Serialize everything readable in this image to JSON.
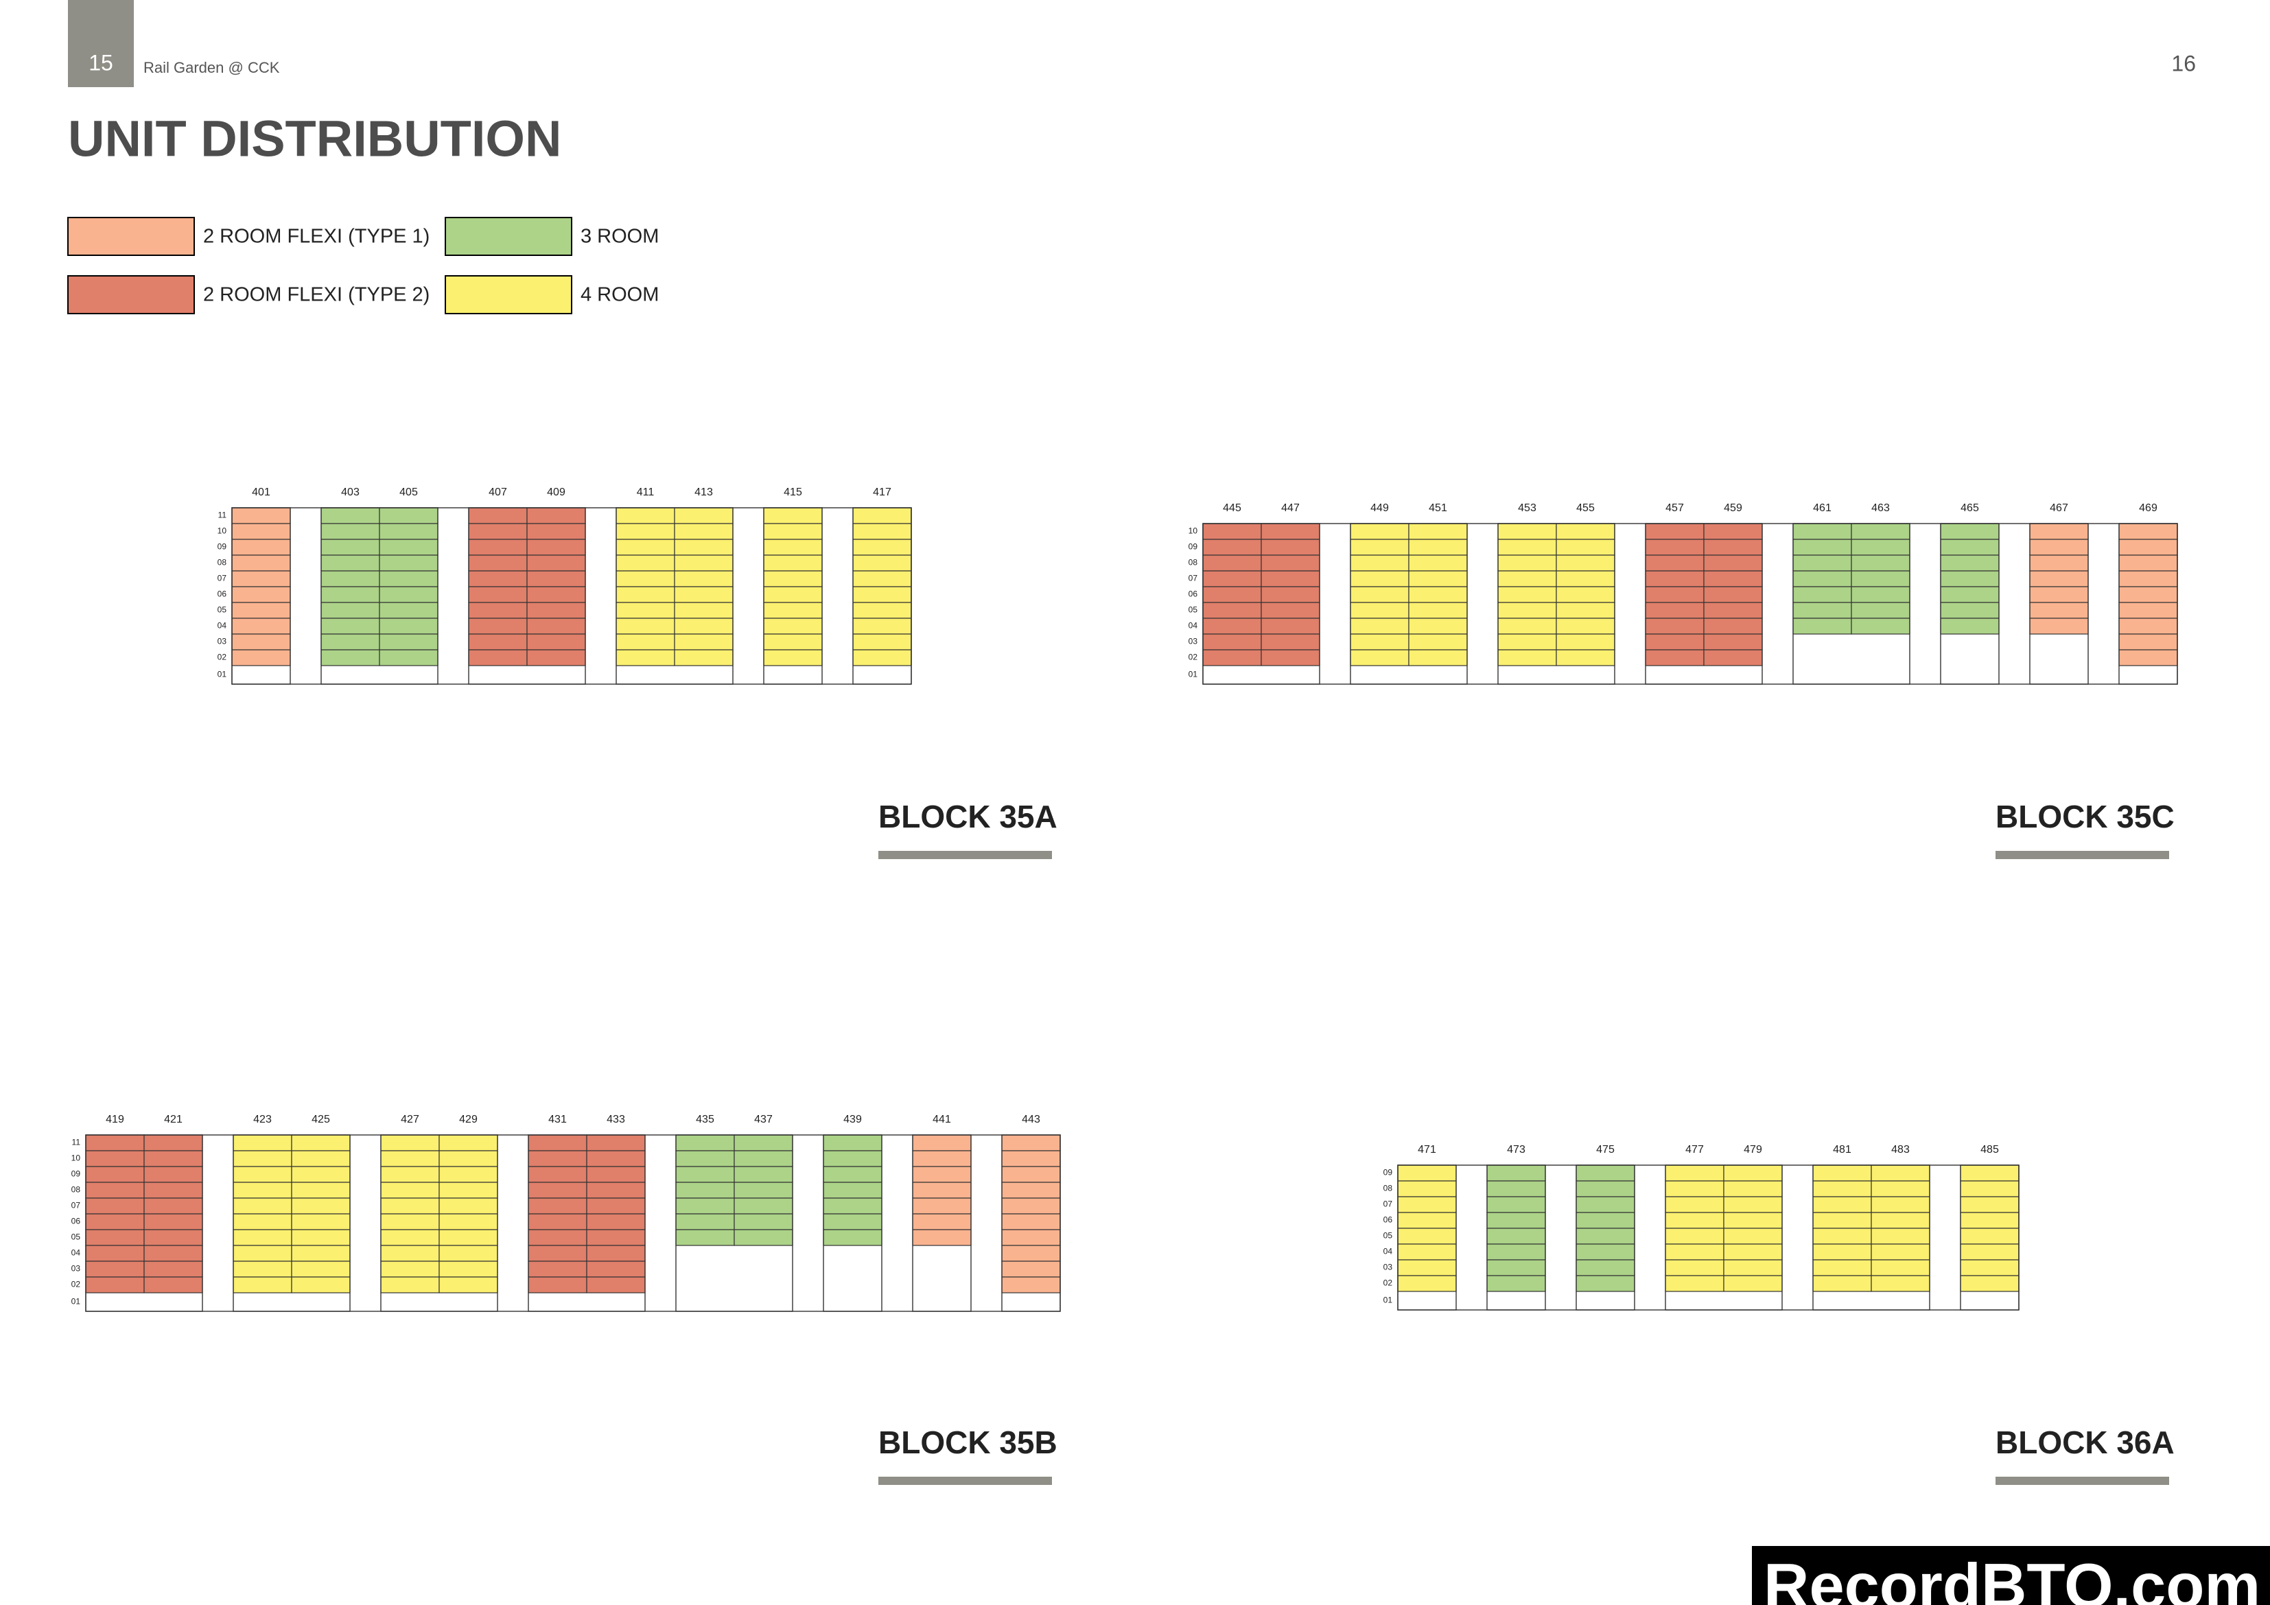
{
  "header": {
    "page_left": "15",
    "project": "Rail Garden @ CCK",
    "page_right": "16"
  },
  "title": "UNIT DISTRIBUTION",
  "legend": [
    {
      "label": "2 ROOM FLEXI (TYPE 1)",
      "color": "#f9b38f"
    },
    {
      "label": "2 ROOM FLEXI (TYPE 2)",
      "color": "#e07f6a"
    },
    {
      "label": "3 ROOM",
      "color": "#acd388"
    },
    {
      "label": "4 ROOM",
      "color": "#fbf06f"
    }
  ],
  "blocks": [
    {
      "name": "BLOCK 35A",
      "floors": [
        "11",
        "10",
        "09",
        "08",
        "07",
        "06",
        "05",
        "04",
        "03",
        "02",
        "01"
      ],
      "groups": [
        [
          {
            "label": "401",
            "type": "2 ROOM FLEXI (TYPE 1)",
            "to": "02"
          }
        ],
        [
          {
            "label": "403",
            "type": "3 ROOM",
            "to": "02"
          },
          {
            "label": "405",
            "type": "3 ROOM",
            "to": "02"
          }
        ],
        [
          {
            "label": "407",
            "type": "2 ROOM FLEXI (TYPE 2)",
            "to": "02"
          },
          {
            "label": "409",
            "type": "2 ROOM FLEXI (TYPE 2)",
            "to": "02"
          }
        ],
        [
          {
            "label": "411",
            "type": "4 ROOM",
            "to": "02"
          },
          {
            "label": "413",
            "type": "4 ROOM",
            "to": "02"
          }
        ],
        [
          {
            "label": "415",
            "type": "4 ROOM",
            "to": "02"
          }
        ],
        [
          {
            "label": "417",
            "type": "4 ROOM",
            "to": "02"
          }
        ]
      ]
    },
    {
      "name": "BLOCK 35C",
      "floors": [
        "10",
        "09",
        "08",
        "07",
        "06",
        "05",
        "04",
        "03",
        "02",
        "01"
      ],
      "groups": [
        [
          {
            "label": "445",
            "type": "2 ROOM FLEXI (TYPE 2)",
            "to": "02"
          },
          {
            "label": "447",
            "type": "2 ROOM FLEXI (TYPE 2)",
            "to": "02"
          }
        ],
        [
          {
            "label": "449",
            "type": "4 ROOM",
            "to": "02"
          },
          {
            "label": "451",
            "type": "4 ROOM",
            "to": "02"
          }
        ],
        [
          {
            "label": "453",
            "type": "4 ROOM",
            "to": "02"
          },
          {
            "label": "455",
            "type": "4 ROOM",
            "to": "02"
          }
        ],
        [
          {
            "label": "457",
            "type": "2 ROOM FLEXI (TYPE 2)",
            "to": "02"
          },
          {
            "label": "459",
            "type": "2 ROOM FLEXI (TYPE 2)",
            "to": "02"
          }
        ],
        [
          {
            "label": "461",
            "type": "3 ROOM",
            "to": "04"
          },
          {
            "label": "463",
            "type": "3 ROOM",
            "to": "04"
          }
        ],
        [
          {
            "label": "465",
            "type": "3 ROOM",
            "to": "04"
          }
        ],
        [
          {
            "label": "467",
            "type": "2 ROOM FLEXI (TYPE 1)",
            "to": "04"
          }
        ],
        [
          {
            "label": "469",
            "type": "2 ROOM FLEXI (TYPE 1)",
            "to": "02"
          }
        ]
      ]
    },
    {
      "name": "BLOCK 35B",
      "floors": [
        "11",
        "10",
        "09",
        "08",
        "07",
        "06",
        "05",
        "04",
        "03",
        "02",
        "01"
      ],
      "groups": [
        [
          {
            "label": "419",
            "type": "2 ROOM FLEXI (TYPE 2)",
            "to": "02"
          },
          {
            "label": "421",
            "type": "2 ROOM FLEXI (TYPE 2)",
            "to": "02"
          }
        ],
        [
          {
            "label": "423",
            "type": "4 ROOM",
            "to": "02"
          },
          {
            "label": "425",
            "type": "4 ROOM",
            "to": "02"
          }
        ],
        [
          {
            "label": "427",
            "type": "4 ROOM",
            "to": "02"
          },
          {
            "label": "429",
            "type": "4 ROOM",
            "to": "02"
          }
        ],
        [
          {
            "label": "431",
            "type": "2 ROOM FLEXI (TYPE 2)",
            "to": "02"
          },
          {
            "label": "433",
            "type": "2 ROOM FLEXI (TYPE 2)",
            "to": "02"
          }
        ],
        [
          {
            "label": "435",
            "type": "3 ROOM",
            "to": "05"
          },
          {
            "label": "437",
            "type": "3 ROOM",
            "to": "05"
          }
        ],
        [
          {
            "label": "439",
            "type": "3 ROOM",
            "to": "05"
          }
        ],
        [
          {
            "label": "441",
            "type": "2 ROOM FLEXI (TYPE 1)",
            "to": "05"
          }
        ],
        [
          {
            "label": "443",
            "type": "2 ROOM FLEXI (TYPE 1)",
            "to": "02"
          }
        ]
      ]
    },
    {
      "name": "BLOCK 36A",
      "floors": [
        "09",
        "08",
        "07",
        "06",
        "05",
        "04",
        "03",
        "02",
        "01"
      ],
      "groups": [
        [
          {
            "label": "471",
            "type": "4 ROOM",
            "to": "02"
          }
        ],
        [
          {
            "label": "473",
            "type": "3 ROOM",
            "to": "02"
          }
        ],
        [
          {
            "label": "475",
            "type": "3 ROOM",
            "to": "02"
          }
        ],
        [
          {
            "label": "477",
            "type": "4 ROOM",
            "to": "02"
          },
          {
            "label": "479",
            "type": "4 ROOM",
            "to": "02"
          }
        ],
        [
          {
            "label": "481",
            "type": "4 ROOM",
            "to": "02"
          },
          {
            "label": "483",
            "type": "4 ROOM",
            "to": "02"
          }
        ],
        [
          {
            "label": "485",
            "type": "4 ROOM",
            "to": "02"
          }
        ]
      ]
    }
  ],
  "watermark": "RecordBTO.com"
}
